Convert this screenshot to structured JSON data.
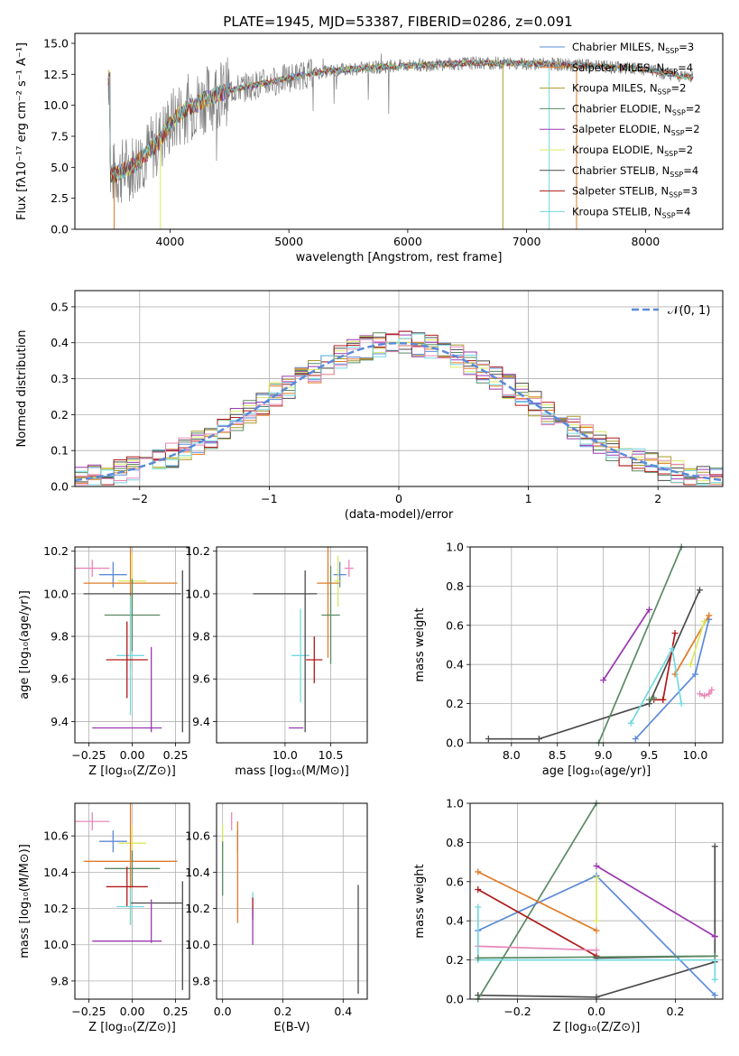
{
  "figure": {
    "title": "PLATE=1945, MJD=53387, FIBERID=0286, z=0.091"
  },
  "colors": {
    "Chabrier MILES": "#5b8ad8",
    "Salpeter MILES": "#e07b28",
    "Kroupa MILES": "#a89a2a",
    "Chabrier ELODIE": "#5a8a64",
    "Salpeter ELODIE": "#9b38b0",
    "Kroupa ELODIE": "#d9e860",
    "Chabrier STELIB": "#4a4a4a",
    "Salpeter STELIB": "#b01a1a",
    "Kroupa STELIB": "#72d8e0",
    "pink": "#e887b8",
    "data": "#808080"
  },
  "chart_data": [
    {
      "id": "spectrum",
      "type": "line",
      "title": "PLATE=1945, MJD=53387, FIBERID=0286, z=0.091",
      "xlabel": "wavelength [Angstrom, rest frame]",
      "ylabel": "Flux [fλ10⁻¹⁷ erg cm⁻² s⁻¹ A⁻¹]",
      "xlim": [
        3200,
        8650
      ],
      "ylim": [
        0,
        15.8
      ],
      "xticks": [
        "4000",
        "5000",
        "6000",
        "7000",
        "8000"
      ],
      "yticks": [
        "0.0",
        "2.5",
        "5.0",
        "7.5",
        "10.0",
        "12.5",
        "15.0"
      ],
      "legend_position": "top-right",
      "series": [
        {
          "name": "Chabrier MILES, N",
          "sub": "SSP",
          "suffix": "=3",
          "color": "#5b8ad8"
        },
        {
          "name": "Salpeter MILES, N",
          "sub": "SSP",
          "suffix": "=4",
          "color": "#e07b28"
        },
        {
          "name": "Kroupa MILES, N",
          "sub": "SSP",
          "suffix": "=2",
          "color": "#a89a2a"
        },
        {
          "name": "Chabrier ELODIE, N",
          "sub": "SSP",
          "suffix": "=2",
          "color": "#5a8a64"
        },
        {
          "name": "Salpeter ELODIE, N",
          "sub": "SSP",
          "suffix": "=2",
          "color": "#9b38b0"
        },
        {
          "name": "Kroupa ELODIE, N",
          "sub": "SSP",
          "suffix": "=2",
          "color": "#d9e860"
        },
        {
          "name": "Chabrier STELIB, N",
          "sub": "SSP",
          "suffix": "=4",
          "color": "#4a4a4a"
        },
        {
          "name": "Salpeter STELIB, N",
          "sub": "SSP",
          "suffix": "=3",
          "color": "#b01a1a"
        },
        {
          "name": "Kroupa STELIB, N",
          "sub": "SSP",
          "suffix": "=4",
          "color": "#72d8e0"
        }
      ],
      "continuum": {
        "x": [
          3500,
          3700,
          3900,
          4000,
          4100,
          4300,
          4500,
          4800,
          5000,
          5200,
          5500,
          5800,
          6000,
          6500,
          7000,
          7500,
          8000,
          8400
        ],
        "y": [
          4.2,
          5.2,
          7.0,
          8.5,
          9.5,
          10.5,
          11.2,
          11.8,
          12.2,
          12.6,
          12.9,
          13.1,
          13.2,
          13.4,
          13.4,
          13.2,
          12.9,
          12.2
        ]
      }
    },
    {
      "id": "residuals",
      "type": "histogram",
      "xlabel": "(data-model)/error",
      "ylabel": "Normed distribution",
      "xlim": [
        -2.5,
        2.5
      ],
      "ylim": [
        0,
        0.545
      ],
      "xticks": [
        "−2",
        "−1",
        "0",
        "1",
        "2"
      ],
      "yticks": [
        "0.0",
        "0.1",
        "0.2",
        "0.3",
        "0.4",
        "0.5"
      ],
      "legend": {
        "label": "𝒩(0, 1)",
        "color": "#5b8ad8",
        "position": "top-right"
      },
      "bin_width": 0.1
    },
    {
      "id": "age-vs-Z",
      "type": "errorbar",
      "xlabel": "Z [log₁₀(Z/Z⊙)]",
      "ylabel": "age  [log₁₀(age/yr)]",
      "xlim": [
        -0.33,
        0.33
      ],
      "ylim": [
        9.3,
        10.22
      ],
      "xticks": [
        "−0.25",
        "0.00",
        "0.25"
      ],
      "xtick_values": [
        -0.25,
        0,
        0.25
      ],
      "yticks": [
        "9.4",
        "9.6",
        "9.8",
        "10.0",
        "10.2"
      ],
      "ytick_values": [
        9.4,
        9.6,
        9.8,
        10.0,
        10.2
      ],
      "points": [
        {
          "color": "#e887b8",
          "x": -0.23,
          "xerr": 0.1,
          "y": 10.12,
          "yerr": 0.04
        },
        {
          "color": "#5b8ad8",
          "x": -0.11,
          "xerr": 0.08,
          "y": 10.09,
          "yerr": 0.06
        },
        {
          "color": "#d9e860",
          "x": 0.0,
          "xerr": 0.08,
          "y": 10.06,
          "yerr": 0.13
        },
        {
          "color": "#e07b28",
          "x": -0.01,
          "xerr": 0.27,
          "y": 10.05,
          "yerr": 0.4
        },
        {
          "color": "#4a4a4a",
          "x": 0.0,
          "xerr": 0.28,
          "y": 10.0,
          "yerr": 0.0
        },
        {
          "color": "#4a4a4a",
          "x": 0.29,
          "xerr": 0.0,
          "y": 9.73,
          "yerr": 0.38
        },
        {
          "color": "#5a8a64",
          "x": 0.0,
          "xerr": 0.16,
          "y": 9.9,
          "yerr": 0.17
        },
        {
          "color": "#72d8e0",
          "x": -0.01,
          "xerr": 0.08,
          "y": 9.71,
          "yerr": 0.28
        },
        {
          "color": "#b01a1a",
          "x": -0.03,
          "xerr": 0.12,
          "y": 9.69,
          "yerr": 0.18
        },
        {
          "color": "#9b38b0",
          "x": 0.11,
          "xerr": 0.0,
          "y": 9.55,
          "yerr": 0.2
        },
        {
          "color": "#9b38b0",
          "x": -0.03,
          "xerr": 0.2,
          "y": 9.37,
          "yerr": 0.0
        }
      ]
    },
    {
      "id": "age-vs-mass",
      "type": "errorbar",
      "xlabel": "mass [log₁₀(M/M⊙)]",
      "ylabel": "",
      "xlim": [
        9.25,
        10.9
      ],
      "ylim": [
        9.3,
        10.22
      ],
      "xticks": [
        "10.0",
        "10.5"
      ],
      "xtick_values": [
        10.0,
        10.5
      ],
      "yticks": [
        "9.4",
        "9.6",
        "9.8",
        "10.0",
        "10.2"
      ],
      "ytick_values": [
        9.4,
        9.6,
        9.8,
        10.0,
        10.2
      ],
      "points": [
        {
          "color": "#e887b8",
          "x": 10.7,
          "xerr": 0.05,
          "y": 10.12,
          "yerr": 0.04
        },
        {
          "color": "#5b8ad8",
          "x": 10.6,
          "xerr": 0.07,
          "y": 10.09,
          "yerr": 0.06
        },
        {
          "color": "#d9e860",
          "x": 10.58,
          "xerr": 0.04,
          "y": 10.06,
          "yerr": 0.12
        },
        {
          "color": "#e07b28",
          "x": 10.47,
          "xerr": 0.12,
          "y": 10.05,
          "yerr": 0.35
        },
        {
          "color": "#4a4a4a",
          "x": 10.0,
          "xerr": 0.35,
          "y": 10.0,
          "yerr": 0.0
        },
        {
          "color": "#5a8a64",
          "x": 10.5,
          "xerr": 0.1,
          "y": 9.9,
          "yerr": 0.23
        },
        {
          "color": "#72d8e0",
          "x": 10.17,
          "xerr": 0.1,
          "y": 9.71,
          "yerr": 0.22
        },
        {
          "color": "#b01a1a",
          "x": 10.32,
          "xerr": 0.09,
          "y": 9.69,
          "yerr": 0.11
        },
        {
          "color": "#9b38b0",
          "x": 10.12,
          "xerr": 0.08,
          "y": 9.37,
          "yerr": 0.0
        },
        {
          "color": "#4a4a4a",
          "x": 10.22,
          "xerr": 0.0,
          "y": 9.73,
          "yerr": 0.38
        }
      ]
    },
    {
      "id": "weight-vs-age",
      "type": "line",
      "xlabel": "age  [log₁₀(age/yr)]",
      "ylabel": "mass weight",
      "xlim": [
        7.55,
        10.3
      ],
      "ylim": [
        0,
        1.0
      ],
      "xticks": [
        "8.0",
        "8.5",
        "9.0",
        "9.5",
        "10.0"
      ],
      "xtick_values": [
        8.0,
        8.5,
        9.0,
        9.5,
        10.0
      ],
      "yticks": [
        "0.0",
        "0.2",
        "0.4",
        "0.6",
        "0.8",
        "1.0"
      ],
      "ytick_values": [
        0,
        0.2,
        0.4,
        0.6,
        0.8,
        1.0
      ],
      "series": [
        {
          "color": "#4a4a4a",
          "x": [
            7.75,
            8.3,
            9.5,
            10.05
          ],
          "y": [
            0.02,
            0.02,
            0.2,
            0.78
          ]
        },
        {
          "color": "#5a8a64",
          "x": [
            8.95,
            9.85
          ],
          "y": [
            0.0,
            1.0
          ]
        },
        {
          "color": "#9b38b0",
          "x": [
            9.0,
            9.5
          ],
          "y": [
            0.32,
            0.68
          ]
        },
        {
          "color": "#5b8ad8",
          "x": [
            9.35,
            10.0,
            10.15
          ],
          "y": [
            0.02,
            0.35,
            0.63
          ]
        },
        {
          "color": "#e07b28",
          "x": [
            9.78,
            10.15
          ],
          "y": [
            0.35,
            0.65
          ]
        },
        {
          "color": "#b01a1a",
          "x": [
            9.65,
            9.78
          ],
          "y": [
            0.22,
            0.56
          ]
        },
        {
          "color": "#b01a1a",
          "x": [
            9.55,
            9.65
          ],
          "y": [
            0.22,
            0.22
          ]
        },
        {
          "color": "#72d8e0",
          "x": [
            9.3,
            9.75,
            9.85
          ],
          "y": [
            0.1,
            0.48,
            0.2
          ]
        },
        {
          "color": "#d9e860",
          "x": [
            9.95,
            10.1
          ],
          "y": [
            0.4,
            0.62
          ]
        },
        {
          "color": "#e887b8",
          "x": [
            10.05,
            10.1,
            10.15,
            10.18
          ],
          "y": [
            0.25,
            0.24,
            0.25,
            0.27
          ]
        },
        {
          "color": "#5a8a64",
          "x": [
            9.5,
            9.55
          ],
          "y": [
            0.22,
            0.23
          ]
        }
      ]
    },
    {
      "id": "mass-vs-Z",
      "type": "errorbar",
      "xlabel": "Z [log₁₀(Z/Z⊙)]",
      "ylabel": "mass [log₁₀(M/M⊙)]",
      "xlim": [
        -0.33,
        0.33
      ],
      "ylim": [
        9.7,
        10.78
      ],
      "xticks": [
        "−0.25",
        "0.00",
        "0.25"
      ],
      "xtick_values": [
        -0.25,
        0,
        0.25
      ],
      "yticks": [
        "9.8",
        "10.0",
        "10.2",
        "10.4",
        "10.6"
      ],
      "ytick_values": [
        9.8,
        10.0,
        10.2,
        10.4,
        10.6
      ],
      "points": [
        {
          "color": "#e887b8",
          "x": -0.23,
          "xerr": 0.1,
          "y": 10.68,
          "yerr": 0.05
        },
        {
          "color": "#5b8ad8",
          "x": -0.11,
          "xerr": 0.08,
          "y": 10.57,
          "yerr": 0.06
        },
        {
          "color": "#d9e860",
          "x": 0.0,
          "xerr": 0.08,
          "y": 10.56,
          "yerr": 0.1
        },
        {
          "color": "#e07b28",
          "x": -0.01,
          "xerr": 0.27,
          "y": 10.46,
          "yerr": 0.35
        },
        {
          "color": "#5a8a64",
          "x": 0.0,
          "xerr": 0.16,
          "y": 10.42,
          "yerr": 0.1
        },
        {
          "color": "#b01a1a",
          "x": -0.03,
          "xerr": 0.12,
          "y": 10.32,
          "yerr": 0.11
        },
        {
          "color": "#4a4a4a",
          "x": 0.14,
          "xerr": 0.15,
          "y": 10.23,
          "yerr": 0.0
        },
        {
          "color": "#4a4a4a",
          "x": 0.29,
          "xerr": 0.0,
          "y": 10.05,
          "yerr": 0.3
        },
        {
          "color": "#72d8e0",
          "x": -0.01,
          "xerr": 0.08,
          "y": 10.21,
          "yerr": 0.1
        },
        {
          "color": "#9b38b0",
          "x": 0.11,
          "xerr": 0.0,
          "y": 10.13,
          "yerr": 0.12
        },
        {
          "color": "#9b38b0",
          "x": -0.03,
          "xerr": 0.2,
          "y": 10.02,
          "yerr": 0.0
        }
      ]
    },
    {
      "id": "mass-vs-ebv",
      "type": "errorbar",
      "xlabel": "E(B-V)",
      "ylabel": "",
      "xlim": [
        -0.02,
        0.48
      ],
      "ylim": [
        9.7,
        10.78
      ],
      "xticks": [
        "0.0",
        "0.2",
        "0.4"
      ],
      "xtick_values": [
        0,
        0.2,
        0.4
      ],
      "yticks": [
        "9.8",
        "10.0",
        "10.2",
        "10.4",
        "10.6"
      ],
      "ytick_values": [
        9.8,
        10.0,
        10.2,
        10.4,
        10.6
      ],
      "points": [
        {
          "color": "#d9e860",
          "x": 0.0,
          "xerr": 0.0,
          "y": 10.56,
          "yerr": 0.1
        },
        {
          "color": "#5a8a64",
          "x": 0.0,
          "xerr": 0.0,
          "y": 10.42,
          "yerr": 0.15
        },
        {
          "color": "#e887b8",
          "x": 0.03,
          "xerr": 0.0,
          "y": 10.68,
          "yerr": 0.05
        },
        {
          "color": "#5b8ad8",
          "x": 0.05,
          "xerr": 0.0,
          "y": 10.57,
          "yerr": 0.06
        },
        {
          "color": "#e07b28",
          "x": 0.05,
          "xerr": 0.0,
          "y": 10.4,
          "yerr": 0.28
        },
        {
          "color": "#72d8e0",
          "x": 0.1,
          "xerr": 0.0,
          "y": 10.21,
          "yerr": 0.08
        },
        {
          "color": "#b01a1a",
          "x": 0.1,
          "xerr": 0.0,
          "y": 10.2,
          "yerr": 0.06
        },
        {
          "color": "#9b38b0",
          "x": 0.1,
          "xerr": 0.0,
          "y": 10.1,
          "yerr": 0.1
        },
        {
          "color": "#4a4a4a",
          "x": 0.45,
          "xerr": 0.0,
          "y": 10.03,
          "yerr": 0.3
        }
      ]
    },
    {
      "id": "weight-vs-Z",
      "type": "line",
      "xlabel": "Z [log₁₀(Z/Z⊙)]",
      "ylabel": "mass weight",
      "xlim": [
        -0.32,
        0.32
      ],
      "ylim": [
        0,
        1.0
      ],
      "xticks": [
        "−0.2",
        "0.0",
        "0.2"
      ],
      "xtick_values": [
        -0.2,
        0,
        0.2
      ],
      "yticks": [
        "0.0",
        "0.2",
        "0.4",
        "0.6",
        "0.8",
        "1.0"
      ],
      "ytick_values": [
        0,
        0.2,
        0.4,
        0.6,
        0.8,
        1.0
      ],
      "series": [
        {
          "color": "#4a4a4a",
          "x": [
            -0.3,
            0.0,
            0.3
          ],
          "y": [
            0.02,
            0.01,
            0.19
          ]
        },
        {
          "color": "#4a4a4a",
          "x": [
            0.0,
            0.3,
            0.3,
            0.3
          ],
          "y": [
            0.21,
            0.22,
            0.32,
            0.78
          ]
        },
        {
          "color": "#5a8a64",
          "x": [
            -0.3,
            0.0
          ],
          "y": [
            0.0,
            1.0
          ]
        },
        {
          "color": "#5b8ad8",
          "x": [
            -0.3,
            0.0,
            0.3
          ],
          "y": [
            0.35,
            0.63,
            0.02
          ]
        },
        {
          "color": "#e07b28",
          "x": [
            -0.3,
            0.0
          ],
          "y": [
            0.65,
            0.35
          ]
        },
        {
          "color": "#b01a1a",
          "x": [
            -0.3,
            0.0
          ],
          "y": [
            0.56,
            0.22
          ]
        },
        {
          "color": "#9b38b0",
          "x": [
            0.0,
            0.3
          ],
          "y": [
            0.68,
            0.32
          ]
        },
        {
          "color": "#d9e860",
          "x": [
            0.0,
            0.0
          ],
          "y": [
            0.62,
            0.4
          ]
        },
        {
          "color": "#e887b8",
          "x": [
            -0.3,
            0.0
          ],
          "y": [
            0.27,
            0.25
          ]
        },
        {
          "color": "#72d8e0",
          "x": [
            -0.3,
            -0.3,
            0.3,
            0.3
          ],
          "y": [
            0.47,
            0.2,
            0.2,
            0.1
          ]
        },
        {
          "color": "#5a8a64",
          "x": [
            -0.3,
            0.3
          ],
          "y": [
            0.21,
            0.22
          ]
        }
      ]
    }
  ]
}
